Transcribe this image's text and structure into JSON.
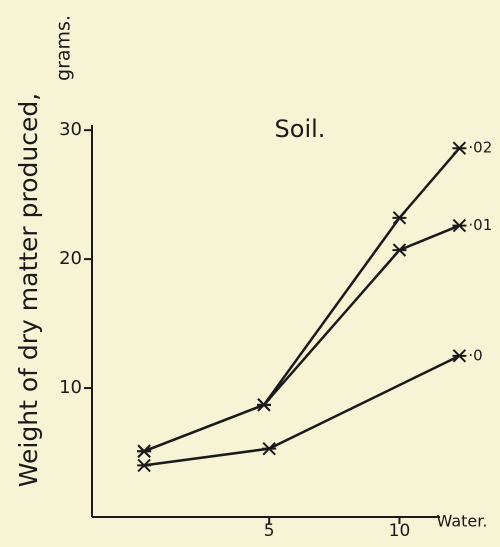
{
  "chart_data": {
    "type": "line",
    "title": "Soil.",
    "y_label": "Weight of dry matter produced,",
    "y_unit": "grams.",
    "x_label": "Water.",
    "xlim": [
      -1.8,
      12.4
    ],
    "xticks": [
      5,
      10
    ],
    "ylim": [
      0,
      30.4
    ],
    "yticks": [
      10,
      20,
      30
    ],
    "color": "#1a1a1a",
    "series": [
      {
        "name": "·02",
        "x": [
          0.2,
          4.8,
          10,
          12.3
        ],
        "values": [
          5.1,
          8.7,
          23.2,
          28.6
        ]
      },
      {
        "name": "·01",
        "x": [
          0.2,
          4.8,
          10,
          12.3
        ],
        "values": [
          5.1,
          8.7,
          20.7,
          22.6
        ]
      },
      {
        "name": "·0",
        "x": [
          0.2,
          5,
          12.3
        ],
        "values": [
          4.0,
          5.3,
          12.5
        ]
      }
    ]
  }
}
